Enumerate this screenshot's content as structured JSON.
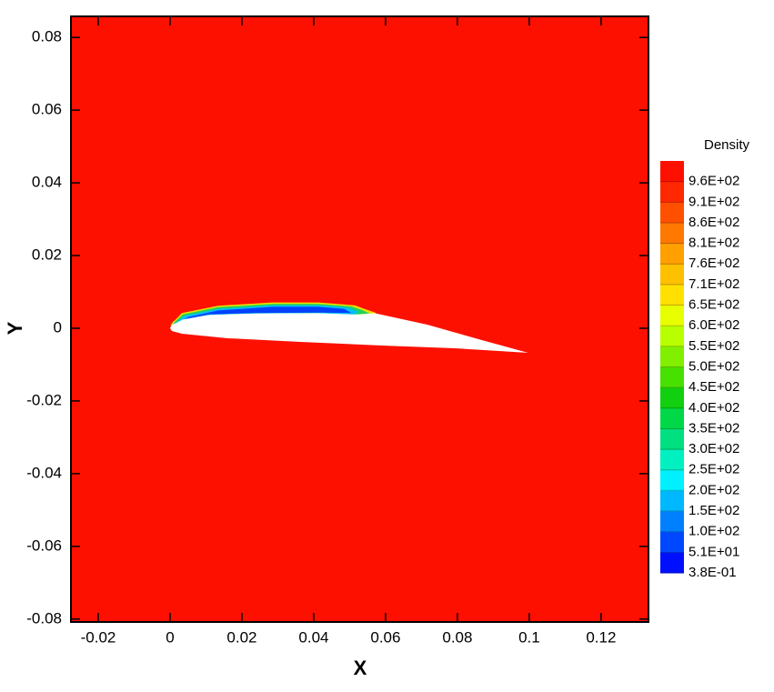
{
  "chart_data": {
    "type": "contour",
    "x_label": "X",
    "y_label": "Y",
    "xlim": [
      -0.0276,
      0.1332
    ],
    "ylim": [
      -0.0808,
      0.0858
    ],
    "xticks": [
      -0.02,
      0,
      0.02,
      0.04,
      0.06,
      0.08,
      0.1,
      0.12
    ],
    "yticks": [
      -0.08,
      -0.06,
      -0.04,
      -0.02,
      0,
      0.02,
      0.04,
      0.06,
      0.08
    ],
    "background": "#fe1000",
    "airfoil": {
      "color": "#ffffff",
      "x": [
        0,
        0.00076,
        0.0033,
        0.0109,
        0.0235,
        0.0362,
        0.0489,
        0.0565,
        0.0716,
        0.0868,
        0.0997,
        0.0792,
        0.059,
        0.0362,
        0.016,
        0.0033,
        0.0005
      ],
      "y": [
        0,
        0.00175,
        0.0035,
        0.00525,
        0.00625,
        0.0065,
        0.00575,
        0.00425,
        0.001,
        -0.00325,
        -0.00675,
        -0.0055,
        -0.00475,
        -0.00375,
        -0.00275,
        -0.0015,
        -0.00075
      ]
    },
    "contours": [
      {
        "color": "#e8e000",
        "x": [
          0,
          0.0033,
          0.0134,
          0.0286,
          0.0413,
          0.0514,
          0.0545,
          0.0575,
          0.0527,
          0.0413,
          0.0235,
          0.0109,
          0.0033
        ],
        "y": [
          0.0008,
          0.0042,
          0.0062,
          0.0071,
          0.0071,
          0.0063,
          0.0052,
          0.0042,
          0.0038,
          0.0042,
          0.0041,
          0.0037,
          0.0025
        ]
      },
      {
        "color": "#20d060",
        "x": [
          0.0005,
          0.0035,
          0.0134,
          0.0286,
          0.0413,
          0.0505,
          0.0535,
          0.0555,
          0.052,
          0.0413,
          0.0235,
          0.0109,
          0.0033
        ],
        "y": [
          0.0009,
          0.0038,
          0.0058,
          0.0067,
          0.0067,
          0.006,
          0.005,
          0.0041,
          0.0038,
          0.0042,
          0.0041,
          0.0037,
          0.0025
        ]
      },
      {
        "color": "#00c0ff",
        "x": [
          0.001,
          0.004,
          0.0134,
          0.0286,
          0.0413,
          0.0495,
          0.0525,
          0.0512,
          0.0413,
          0.0235,
          0.0109,
          0.0035
        ],
        "y": [
          0.0011,
          0.0034,
          0.0053,
          0.0063,
          0.0063,
          0.0057,
          0.0045,
          0.0038,
          0.0042,
          0.0041,
          0.0037,
          0.0024
        ]
      },
      {
        "color": "#0040ff",
        "x": [
          0.002,
          0.005,
          0.0134,
          0.0286,
          0.0413,
          0.0485,
          0.0505,
          0.0413,
          0.0235,
          0.0109,
          0.004
        ],
        "y": [
          0.0014,
          0.0031,
          0.0049,
          0.0059,
          0.0059,
          0.0053,
          0.0042,
          0.0043,
          0.0042,
          0.0038,
          0.0025
        ]
      }
    ],
    "colorbar": {
      "title": "Density",
      "levels": [
        {
          "value": 0.38,
          "label": "3.8E-01"
        },
        {
          "value": 51,
          "label": "5.1E+01"
        },
        {
          "value": 100,
          "label": "1.0E+02"
        },
        {
          "value": 150,
          "label": "1.5E+02"
        },
        {
          "value": 200,
          "label": "2.0E+02"
        },
        {
          "value": 250,
          "label": "2.5E+02"
        },
        {
          "value": 300,
          "label": "3.0E+02"
        },
        {
          "value": 350,
          "label": "3.5E+02"
        },
        {
          "value": 400,
          "label": "4.0E+02"
        },
        {
          "value": 450,
          "label": "4.5E+02"
        },
        {
          "value": 500,
          "label": "5.0E+02"
        },
        {
          "value": 550,
          "label": "5.5E+02"
        },
        {
          "value": 600,
          "label": "6.0E+02"
        },
        {
          "value": 650,
          "label": "6.5E+02"
        },
        {
          "value": 710,
          "label": "7.1E+02"
        },
        {
          "value": 760,
          "label": "7.6E+02"
        },
        {
          "value": 810,
          "label": "8.1E+02"
        },
        {
          "value": 860,
          "label": "8.6E+02"
        },
        {
          "value": 910,
          "label": "9.1E+02"
        },
        {
          "value": 960,
          "label": "9.6E+02"
        }
      ],
      "colors": [
        "#0010ff",
        "#0048ff",
        "#0080ff",
        "#00b8ff",
        "#00f0ff",
        "#00f0c0",
        "#00e080",
        "#00d848",
        "#10d010",
        "#48e000",
        "#80f000",
        "#b8ff00",
        "#e8ff00",
        "#ffe000",
        "#ffc000",
        "#ffa000",
        "#ff7800",
        "#ff5000",
        "#ff2800",
        "#fe1000"
      ]
    }
  }
}
